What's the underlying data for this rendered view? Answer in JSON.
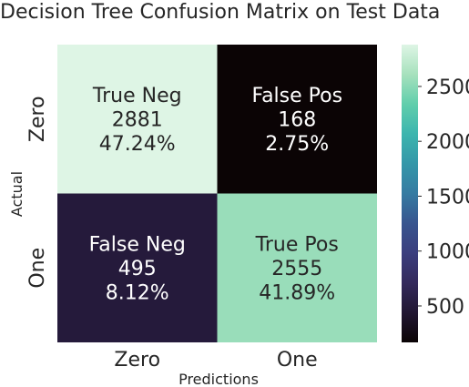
{
  "chart_data": {
    "type": "heatmap",
    "title": "Decision Tree Confusion Matrix on Test Data",
    "xlabel": "Predictions",
    "ylabel": "Actual",
    "x_categories": [
      "Zero",
      "One"
    ],
    "y_categories": [
      "Zero",
      "One"
    ],
    "cells": [
      [
        {
          "label": "True Neg",
          "count": "2881",
          "percent": "47.24%",
          "value": 2881
        },
        {
          "label": "False Pos",
          "count": "168",
          "percent": "2.75%",
          "value": 168
        }
      ],
      [
        {
          "label": "False Neg",
          "count": "495",
          "percent": "8.12%",
          "value": 495
        },
        {
          "label": "True Pos",
          "count": "2555",
          "percent": "41.89%",
          "value": 2555
        }
      ]
    ],
    "colorbar": {
      "colormap": "mako",
      "range": [
        168,
        2881
      ],
      "ticks": [
        500,
        1000,
        1500,
        2000,
        2500
      ],
      "tick_labels": [
        "500",
        "1000",
        "1500",
        "2000",
        "2500"
      ]
    },
    "legend": "colorbar-right"
  }
}
